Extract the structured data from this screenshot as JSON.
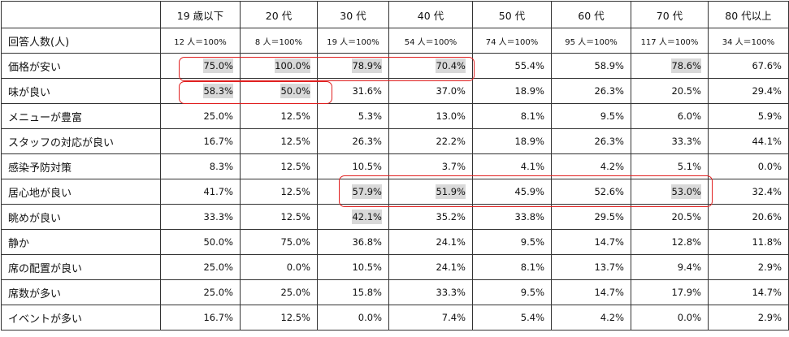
{
  "table": {
    "header": [
      "19 歳以下",
      "20 代",
      "30 代",
      "40 代",
      "50 代",
      "60 代",
      "70 代",
      "80 代以上"
    ],
    "rows": [
      [
        "回答人数(人)",
        "12 人＝100%",
        "8 人＝100%",
        "19 人＝100%",
        "54 人＝100%",
        "74 人＝100%",
        "95 人＝100%",
        "117 人＝100%",
        "34 人＝100%"
      ],
      [
        "価格が安い",
        "75.0%",
        "100.0%",
        "78.9%",
        "70.4%",
        "55.4%",
        "58.9%",
        "78.6%",
        "67.6%"
      ],
      [
        "味が良い",
        "58.3%",
        "50.0%",
        "31.6%",
        "37.0%",
        "18.9%",
        "26.3%",
        "20.5%",
        "29.4%"
      ],
      [
        "メニューが豊富",
        "25.0%",
        "12.5%",
        "5.3%",
        "13.0%",
        "8.1%",
        "9.5%",
        "6.0%",
        "5.9%"
      ],
      [
        "スタッフの対応が良い",
        "16.7%",
        "12.5%",
        "26.3%",
        "22.2%",
        "18.9%",
        "26.3%",
        "33.3%",
        "44.1%"
      ],
      [
        "感染予防対策",
        "8.3%",
        "12.5%",
        "10.5%",
        "3.7%",
        "4.1%",
        "4.2%",
        "5.1%",
        "0.0%"
      ],
      [
        "居心地が良い",
        "41.7%",
        "12.5%",
        "57.9%",
        "51.9%",
        "45.9%",
        "52.6%",
        "53.0%",
        "32.4%"
      ],
      [
        "眺めが良い",
        "33.3%",
        "12.5%",
        "42.1%",
        "35.2%",
        "33.8%",
        "29.5%",
        "20.5%",
        "20.6%"
      ],
      [
        "静か",
        "50.0%",
        "75.0%",
        "36.8%",
        "24.1%",
        "9.5%",
        "14.7%",
        "12.8%",
        "11.8%"
      ],
      [
        "席の配置が良い",
        "25.0%",
        "0.0%",
        "10.5%",
        "24.1%",
        "8.1%",
        "13.7%",
        "9.4%",
        "2.9%"
      ],
      [
        "席数が多い",
        "25.0%",
        "25.0%",
        "15.8%",
        "33.3%",
        "9.5%",
        "14.7%",
        "17.9%",
        "14.7%"
      ],
      [
        "イベントが多い",
        "16.7%",
        "12.5%",
        "0.0%",
        "7.4%",
        "5.4%",
        "4.2%",
        "0.0%",
        "2.9%"
      ]
    ]
  }
}
